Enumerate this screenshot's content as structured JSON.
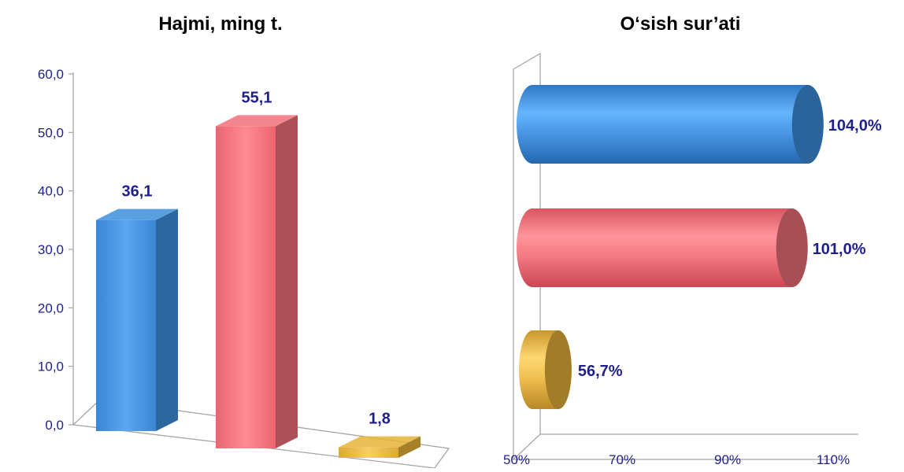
{
  "colors": {
    "text": "#1f1f8c",
    "axis": "#a6a6a6",
    "blue": "#3d8fdc",
    "red": "#f0707a",
    "yellow": "#e6b33a"
  },
  "chart_data": [
    {
      "type": "bar",
      "title": "Hajmi, ming t.",
      "categories": [
        "",
        "",
        ""
      ],
      "values": [
        36.1,
        55.1,
        1.8
      ],
      "data_labels": [
        "36,1",
        "55,1",
        "1,8"
      ],
      "bar_colors": [
        "#3d8fdc",
        "#f0707a",
        "#e6b33a"
      ],
      "ylim": [
        0,
        60
      ],
      "yticks": [
        0,
        10,
        20,
        30,
        40,
        50,
        60
      ],
      "ytick_labels": [
        "0,0",
        "10,0",
        "20,0",
        "30,0",
        "40,0",
        "50,0",
        "60,0"
      ],
      "legend": "none"
    },
    {
      "type": "bar",
      "orientation": "horizontal",
      "title": "O‘sish sur’ati",
      "categories": [
        "",
        "",
        ""
      ],
      "values": [
        104.0,
        101.0,
        56.7
      ],
      "data_labels": [
        "104,0%",
        "101,0%",
        "56,7%"
      ],
      "bar_colors": [
        "#3d8fdc",
        "#f0707a",
        "#e6b33a"
      ],
      "xlim": [
        50,
        110
      ],
      "xticks": [
        50,
        70,
        90,
        110
      ],
      "xtick_labels": [
        "50%",
        "70%",
        "90%",
        "110%"
      ],
      "legend": "none"
    }
  ]
}
